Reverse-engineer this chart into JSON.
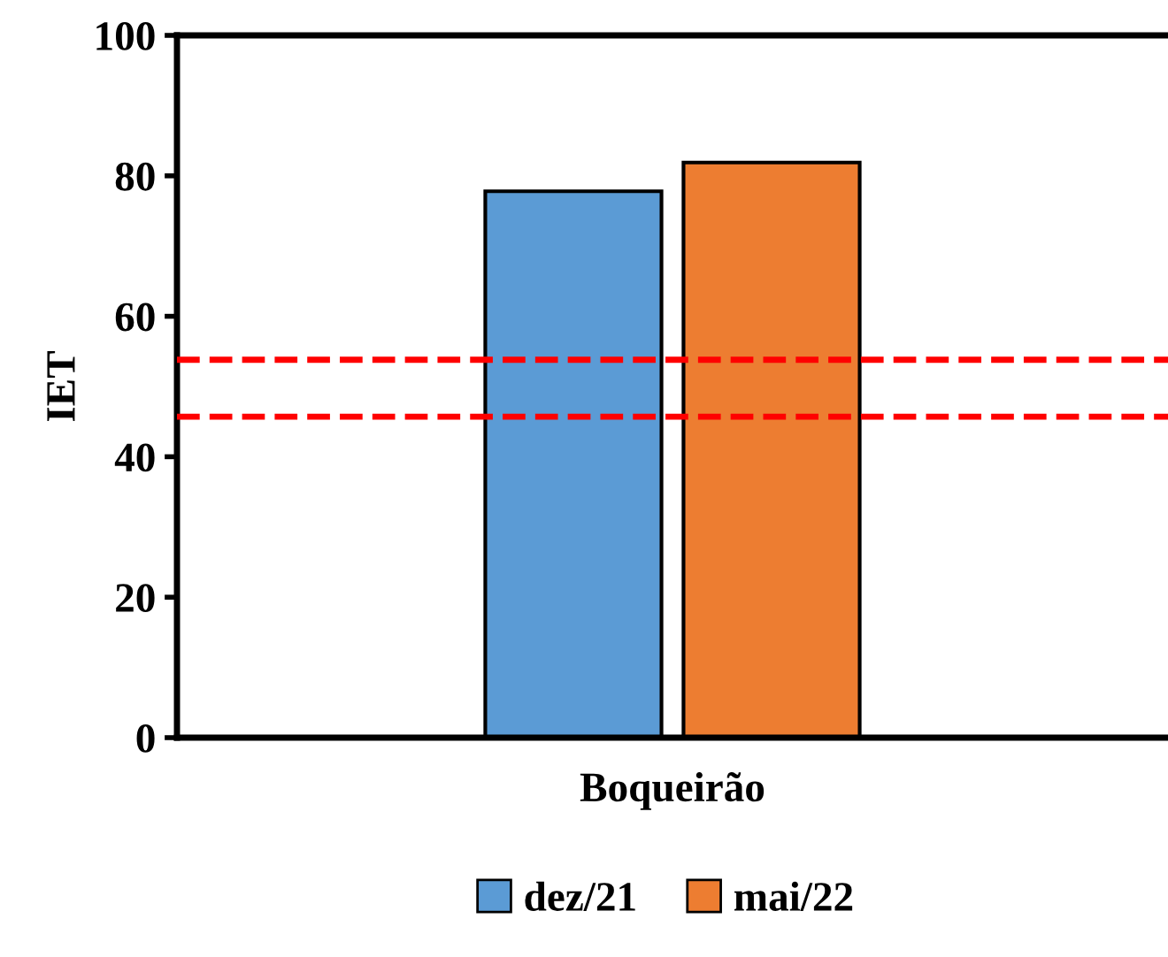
{
  "chart_data": {
    "type": "bar",
    "ylabel": "IET",
    "categories": [
      "Boqueirão"
    ],
    "series": [
      {
        "name": "dez/21",
        "color": "#5b9bd5",
        "values": [
          77.8
        ]
      },
      {
        "name": "mai/22",
        "color": "#ed7d31",
        "values": [
          81.9
        ]
      }
    ],
    "ylim": [
      0,
      100
    ],
    "yticks": [
      0,
      20,
      40,
      60,
      80,
      100
    ],
    "ref_lines": [
      {
        "axis": "y",
        "value": 53.8,
        "color": "#ff0000",
        "line_style": "dashed"
      },
      {
        "axis": "y",
        "value": 45.7,
        "color": "#ff0000",
        "line_style": "dashed"
      }
    ],
    "legend": "bottom",
    "grid": false
  }
}
